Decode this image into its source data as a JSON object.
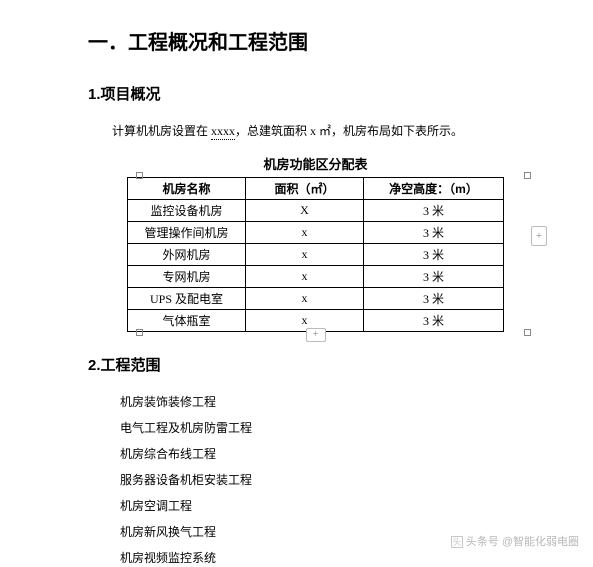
{
  "heading1": "一．工程概况和工程范围",
  "section1": {
    "title": "1.项目概况",
    "para_pre": "计算机机房设置在 ",
    "para_u": "xxxx",
    "para_post": "，总建筑面积 x ㎡，机房布局如下表所示。"
  },
  "table": {
    "title": "机房功能区分配表",
    "columns": [
      "机房名称",
      "面积（㎡）",
      "净空高度：（m）"
    ],
    "rows": [
      [
        "监控设备机房",
        "X",
        "3 米"
      ],
      [
        "管理操作间机房",
        "x",
        "3 米"
      ],
      [
        "外网机房",
        "x",
        "3 米"
      ],
      [
        "专网机房",
        "x",
        "3 米"
      ],
      [
        "UPS 及配电室",
        "x",
        "3 米"
      ],
      [
        "气体瓶室",
        "x",
        "3 米"
      ]
    ]
  },
  "section2": {
    "title": "2.工程范围",
    "items": [
      "机房装饰装修工程",
      "电气工程及机房防雷工程",
      "机房综合布线工程",
      "服务器设备机柜安装工程",
      "机房空调工程",
      "机房新风换气工程",
      "机房视频监控系统"
    ]
  },
  "watermark": "头条号 @智能化弱电圈",
  "plus": "+"
}
